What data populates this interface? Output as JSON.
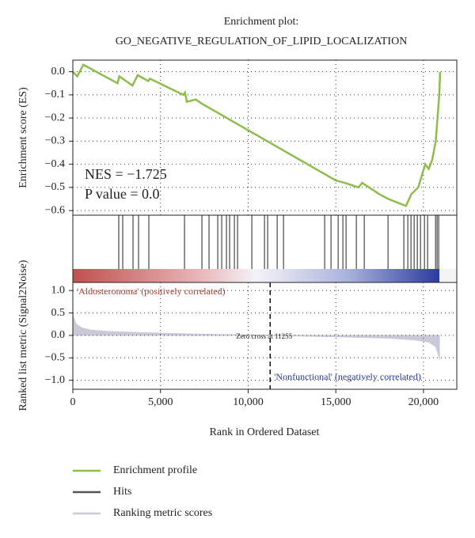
{
  "chart_data": [
    {
      "type": "line",
      "title": "Enrichment plot:",
      "subtitle": "GO_NEGATIVE_REGULATION_OF_LIPID_LOCALIZATION",
      "ylabel": "Enrichment score (ES)",
      "annotations": [
        "NES = −1.725",
        "P value = 0.0"
      ],
      "xlim": [
        0,
        21900
      ],
      "ylim": [
        -0.62,
        0.05
      ],
      "yticks": [
        {
          "value": 0,
          "label": "0.0"
        },
        {
          "value": -0.1,
          "label": "−0.1"
        },
        {
          "value": -0.2,
          "label": "−0.2"
        },
        {
          "value": -0.3,
          "label": "−0.3"
        },
        {
          "value": -0.4,
          "label": "−0.4"
        },
        {
          "value": -0.5,
          "label": "−0.5"
        },
        {
          "value": -0.6,
          "label": "−0.6"
        }
      ],
      "grid": true,
      "x": [
        0,
        250,
        600,
        2550,
        2650,
        3400,
        3700,
        4300,
        4400,
        6300,
        6400,
        6500,
        7000,
        7400,
        15000,
        15500,
        16300,
        16500,
        17500,
        18000,
        19000,
        19300,
        19700,
        19900,
        20100,
        20300,
        20500,
        20700,
        20750,
        20900,
        20950
      ],
      "series": [
        {
          "name": "Enrichment profile",
          "color": "#8dbd4c",
          "values": [
            0,
            -0.02,
            0.03,
            -0.05,
            -0.02,
            -0.06,
            -0.015,
            -0.04,
            -0.03,
            -0.1,
            -0.09,
            -0.13,
            -0.12,
            -0.14,
            -0.47,
            -0.48,
            -0.5,
            -0.48,
            -0.53,
            -0.55,
            -0.58,
            -0.53,
            -0.5,
            -0.45,
            -0.4,
            -0.42,
            -0.38,
            -0.3,
            -0.25,
            -0.1,
            0.0
          ]
        }
      ]
    },
    {
      "type": "hits",
      "xlim": [
        0,
        21900
      ],
      "series": [
        {
          "name": "Hits",
          "color": "#555555",
          "values": [
            2620,
            2846,
            3433,
            3749,
            4336,
            6369,
            7363,
            7769,
            8266,
            8492,
            8763,
            8944,
            9215,
            9396,
            10210,
            10932,
            11113,
            11655,
            12017,
            14364,
            14726,
            15133,
            15404,
            15585,
            16172,
            16624,
            17979,
            18882,
            19108,
            19289,
            19469,
            19650,
            19831,
            20057,
            20237,
            20689,
            20779,
            20870
          ]
        }
      ]
    },
    {
      "type": "area",
      "ylabel": "Ranked list metric (Signal2Noise)",
      "xlabel": "Rank in Ordered Dataset",
      "annotations": [
        "'Aldosteronoma' (positively correlated)",
        "Zero cross at 11255",
        "'Nonfunctional' (negatively correlated)"
      ],
      "zero_cross": 11255,
      "xlim": [
        0,
        21900
      ],
      "xticks": [
        0,
        {
          "value": 5000,
          "label": "5,000"
        },
        {
          "value": 10000,
          "label": "10,000"
        },
        {
          "value": 15000,
          "label": "15,000"
        },
        {
          "value": 20000,
          "label": "20,000"
        }
      ],
      "ylim": [
        -1.2,
        1.18
      ],
      "yticks": [
        {
          "value": 1,
          "label": "1.0"
        },
        0.5,
        {
          "value": 0,
          "label": "0.0"
        },
        {
          "value": -0.5,
          "label": "−0.5"
        },
        {
          "value": -1,
          "label": "−1.0"
        }
      ],
      "grid": true,
      "x": [
        0,
        200,
        500,
        1000,
        2000,
        4000,
        7000,
        11255,
        15000,
        18000,
        19500,
        20300,
        20700,
        20900,
        20910
      ],
      "series": [
        {
          "name": "Ranking metric scores",
          "color": "#c9c9d8",
          "values": [
            0.45,
            0.25,
            0.17,
            0.12,
            0.09,
            0.06,
            0.03,
            0,
            -0.03,
            -0.06,
            -0.1,
            -0.15,
            -0.25,
            -0.5,
            -0.55
          ]
        }
      ]
    }
  ]
}
